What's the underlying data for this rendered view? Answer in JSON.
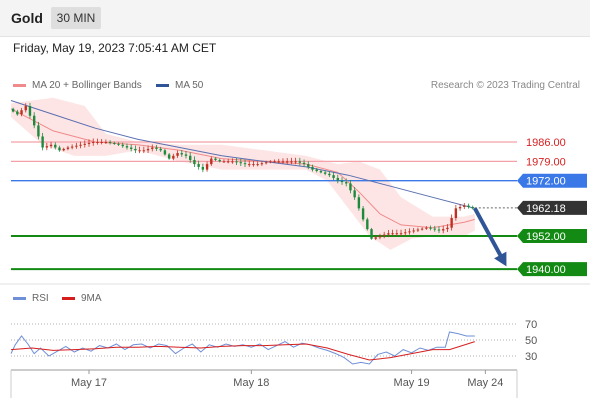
{
  "header": {
    "instrument": "Gold",
    "timeframe": "30 MIN"
  },
  "timestamp": "Friday, May 19, 2023 7:05:41 AM CET",
  "credit": "Research © 2023 Trading Central",
  "legend": {
    "main": [
      {
        "label": "MA 20 + Bollinger Bands",
        "color": "#f08a8a"
      },
      {
        "label": "MA 50",
        "color": "#2f5597"
      }
    ],
    "rsi": [
      {
        "label": "RSI",
        "color": "#6f8fd6"
      },
      {
        "label": "9MA",
        "color": "#d61e1e"
      }
    ]
  },
  "colors": {
    "resistance": "#f4a0a8",
    "pivot": "#3b78e7",
    "support": "#138a13",
    "current": "#333333",
    "arrow": "#2f5597",
    "candle_up": "#c03020",
    "candle_down": "#1e8a3c"
  },
  "chart_data": {
    "type": "candlestick",
    "price_ylim": [
      1935,
      2003
    ],
    "x_range": [
      0,
      240
    ],
    "levels": [
      {
        "kind": "resistance",
        "value": 1986.0,
        "label": "1986.00"
      },
      {
        "kind": "resistance",
        "value": 1979.0,
        "label": "1979.00"
      },
      {
        "kind": "pivot",
        "value": 1972.0,
        "label": "1972.00"
      },
      {
        "kind": "current",
        "value": 1962.18,
        "label": "1962.18"
      },
      {
        "kind": "support",
        "value": 1952.0,
        "label": "1952.00"
      },
      {
        "kind": "support",
        "value": 1940.0,
        "label": "1940.00"
      }
    ],
    "price_path": [
      [
        0,
        1998
      ],
      [
        4,
        1996
      ],
      [
        8,
        1999
      ],
      [
        12,
        1992
      ],
      [
        16,
        1984
      ],
      [
        20,
        1985
      ],
      [
        24,
        1983
      ],
      [
        28,
        1984
      ],
      [
        34,
        1985
      ],
      [
        40,
        1986
      ],
      [
        46,
        1986
      ],
      [
        52,
        1985
      ],
      [
        56,
        1984
      ],
      [
        60,
        1983
      ],
      [
        64,
        1983
      ],
      [
        68,
        1984
      ],
      [
        72,
        1983
      ],
      [
        76,
        1980
      ],
      [
        80,
        1982
      ],
      [
        84,
        1981
      ],
      [
        88,
        1978
      ],
      [
        92,
        1976
      ],
      [
        96,
        1980
      ],
      [
        100,
        1979
      ],
      [
        106,
        1979
      ],
      [
        112,
        1978
      ],
      [
        118,
        1978
      ],
      [
        124,
        1979
      ],
      [
        130,
        1979
      ],
      [
        136,
        1979
      ],
      [
        140,
        1978
      ],
      [
        144,
        1976
      ],
      [
        148,
        1975
      ],
      [
        152,
        1974
      ],
      [
        156,
        1972
      ],
      [
        160,
        1971
      ],
      [
        164,
        1966
      ],
      [
        168,
        1958
      ],
      [
        172,
        1951
      ],
      [
        176,
        1952
      ],
      [
        180,
        1953
      ],
      [
        186,
        1953
      ],
      [
        192,
        1954
      ],
      [
        198,
        1955
      ],
      [
        204,
        1954
      ],
      [
        208,
        1955
      ],
      [
        212,
        1962
      ],
      [
        216,
        1963
      ],
      [
        220,
        1962
      ]
    ],
    "ma20": [
      [
        0,
        1998
      ],
      [
        20,
        1990
      ],
      [
        40,
        1986
      ],
      [
        60,
        1985
      ],
      [
        80,
        1983
      ],
      [
        100,
        1980
      ],
      [
        120,
        1979
      ],
      [
        140,
        1978
      ],
      [
        155,
        1975
      ],
      [
        165,
        1968
      ],
      [
        175,
        1960
      ],
      [
        185,
        1956
      ],
      [
        200,
        1955
      ],
      [
        215,
        1957
      ],
      [
        220,
        1958
      ]
    ],
    "ma50": [
      [
        0,
        2001
      ],
      [
        20,
        1996
      ],
      [
        40,
        1991
      ],
      [
        60,
        1987
      ],
      [
        80,
        1984
      ],
      [
        100,
        1981
      ],
      [
        120,
        1979
      ],
      [
        140,
        1977
      ],
      [
        160,
        1974
      ],
      [
        180,
        1970
      ],
      [
        200,
        1966
      ],
      [
        220,
        1962
      ]
    ],
    "bollinger_upper": [
      [
        0,
        2000
      ],
      [
        20,
        2002
      ],
      [
        35,
        1999
      ],
      [
        45,
        1989
      ],
      [
        60,
        1986
      ],
      [
        80,
        1985
      ],
      [
        100,
        1985
      ],
      [
        120,
        1983
      ],
      [
        140,
        1981
      ],
      [
        155,
        1978
      ],
      [
        165,
        1979
      ],
      [
        175,
        1976
      ],
      [
        185,
        1966
      ],
      [
        200,
        1959
      ],
      [
        215,
        1959
      ],
      [
        220,
        1960
      ]
    ],
    "bollinger_lower": [
      [
        0,
        1995
      ],
      [
        15,
        1985
      ],
      [
        30,
        1981
      ],
      [
        45,
        1981
      ],
      [
        60,
        1983
      ],
      [
        80,
        1979
      ],
      [
        100,
        1976
      ],
      [
        120,
        1976
      ],
      [
        140,
        1976
      ],
      [
        150,
        1972
      ],
      [
        160,
        1962
      ],
      [
        170,
        1952
      ],
      [
        180,
        1947
      ],
      [
        190,
        1951
      ],
      [
        200,
        1952
      ],
      [
        215,
        1952
      ],
      [
        220,
        1954
      ]
    ],
    "forecast_arrow": {
      "from": [
        220,
        1962
      ],
      "to": [
        235,
        1941
      ]
    },
    "x_ticks": [
      {
        "x": 37,
        "label": "May 17"
      },
      {
        "x": 114,
        "label": "May 18"
      },
      {
        "x": 190,
        "label": "May 19"
      },
      {
        "x": 225,
        "label": "May 24"
      }
    ],
    "rsi_ylim": [
      15,
      85
    ],
    "rsi_levels": [
      70,
      50,
      30
    ],
    "rsi_path": [
      [
        0,
        33
      ],
      [
        2,
        44
      ],
      [
        5,
        55
      ],
      [
        8,
        45
      ],
      [
        11,
        33
      ],
      [
        14,
        40
      ],
      [
        18,
        30
      ],
      [
        22,
        36
      ],
      [
        26,
        42
      ],
      [
        30,
        35
      ],
      [
        34,
        40
      ],
      [
        38,
        36
      ],
      [
        42,
        43
      ],
      [
        46,
        40
      ],
      [
        50,
        45
      ],
      [
        54,
        38
      ],
      [
        58,
        44
      ],
      [
        62,
        45
      ],
      [
        66,
        40
      ],
      [
        70,
        45
      ],
      [
        74,
        43
      ],
      [
        78,
        33
      ],
      [
        82,
        40
      ],
      [
        86,
        45
      ],
      [
        90,
        35
      ],
      [
        94,
        44
      ],
      [
        98,
        41
      ],
      [
        102,
        45
      ],
      [
        106,
        42
      ],
      [
        110,
        44
      ],
      [
        114,
        41
      ],
      [
        118,
        45
      ],
      [
        122,
        38
      ],
      [
        126,
        43
      ],
      [
        130,
        48
      ],
      [
        134,
        41
      ],
      [
        138,
        46
      ],
      [
        142,
        44
      ],
      [
        146,
        40
      ],
      [
        150,
        37
      ],
      [
        154,
        33
      ],
      [
        158,
        28
      ],
      [
        162,
        20
      ],
      [
        166,
        22
      ],
      [
        170,
        20
      ],
      [
        174,
        32
      ],
      [
        178,
        35
      ],
      [
        182,
        30
      ],
      [
        186,
        38
      ],
      [
        190,
        34
      ],
      [
        194,
        40
      ],
      [
        198,
        37
      ],
      [
        202,
        41
      ],
      [
        206,
        41
      ],
      [
        208,
        60
      ],
      [
        212,
        58
      ],
      [
        216,
        55
      ],
      [
        220,
        55
      ]
    ],
    "rsi_ma_path": [
      [
        0,
        38
      ],
      [
        10,
        40
      ],
      [
        20,
        37
      ],
      [
        30,
        38
      ],
      [
        40,
        39
      ],
      [
        50,
        41
      ],
      [
        60,
        41
      ],
      [
        70,
        42
      ],
      [
        80,
        41
      ],
      [
        90,
        40
      ],
      [
        100,
        42
      ],
      [
        110,
        43
      ],
      [
        120,
        43
      ],
      [
        130,
        44
      ],
      [
        140,
        45
      ],
      [
        150,
        40
      ],
      [
        160,
        32
      ],
      [
        170,
        25
      ],
      [
        180,
        28
      ],
      [
        190,
        33
      ],
      [
        200,
        38
      ],
      [
        208,
        38
      ],
      [
        214,
        43
      ],
      [
        220,
        48
      ]
    ]
  }
}
